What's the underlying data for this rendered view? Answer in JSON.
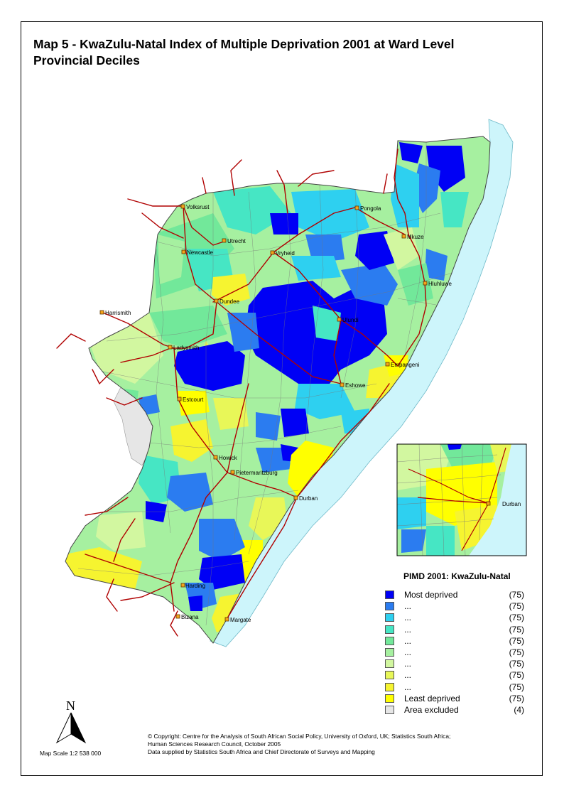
{
  "title": {
    "line1": "Map 5 - KwaZulu-Natal Index of Multiple Deprivation 2001 at Ward Level",
    "line2": "Provincial Deciles"
  },
  "cities": [
    {
      "name": "Volksrust"
    },
    {
      "name": "Pongola"
    },
    {
      "name": "Utrecht"
    },
    {
      "name": "Mkuze"
    },
    {
      "name": "Newcastle"
    },
    {
      "name": "Vryheid"
    },
    {
      "name": "Hluhluwe"
    },
    {
      "name": "Dundee"
    },
    {
      "name": "Harrismith"
    },
    {
      "name": "Ulundi"
    },
    {
      "name": "Ladysmith"
    },
    {
      "name": "Empangeni"
    },
    {
      "name": "Eshowe"
    },
    {
      "name": "Estcourt"
    },
    {
      "name": "Howick"
    },
    {
      "name": "Pietermaritzburg"
    },
    {
      "name": "Durban"
    },
    {
      "name": "Harding"
    },
    {
      "name": "Bizana"
    },
    {
      "name": "Margate"
    }
  ],
  "inset": {
    "city": "Durban"
  },
  "legend": {
    "title": "PIMD 2001: KwaZulu-Natal",
    "items": [
      {
        "label": "Most deprived",
        "count": "(75)",
        "color": "#0000f5"
      },
      {
        "label": "...",
        "count": "(75)",
        "color": "#2b7cf0"
      },
      {
        "label": "...",
        "count": "(75)",
        "color": "#2ed0f0"
      },
      {
        "label": "...",
        "count": "(75)",
        "color": "#46e6c4"
      },
      {
        "label": "...",
        "count": "(75)",
        "color": "#72e89a"
      },
      {
        "label": "...",
        "count": "(75)",
        "color": "#a6f0a0"
      },
      {
        "label": "...",
        "count": "(75)",
        "color": "#d2f7a0"
      },
      {
        "label": "...",
        "count": "(75)",
        "color": "#e8f758"
      },
      {
        "label": "...",
        "count": "(75)",
        "color": "#f6f430"
      },
      {
        "label": "Least deprived",
        "count": "(75)",
        "color": "#ffff00"
      },
      {
        "label": "Area excluded",
        "count": "(4)",
        "color": "#e6e6e6"
      }
    ]
  },
  "north": {
    "letter": "N"
  },
  "scale": "Map Scale 1:2 538 000",
  "copyright": {
    "line1": "© Copyright: Centre for the Analysis of South African Social Policy, University of Oxford, UK; Statistics South Africa;",
    "line2": "Human Sciences Research Council,  October 2005",
    "line3": "Data supplied by Statistics South Africa and Chief Directorate of Surveys and Mapping"
  },
  "colors": {
    "ocean": "#cdf5fb",
    "roads": "#b00000",
    "boundaries": "#777777",
    "excluded": "#e6e6e6"
  }
}
